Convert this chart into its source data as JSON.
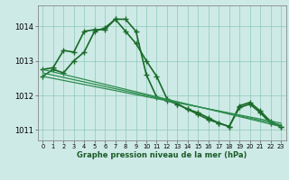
{
  "background_color": "#ceeae6",
  "grid_color": "#8cc8b8",
  "xlabel": "Graphe pression niveau de la mer (hPa)",
  "ylim": [
    1010.7,
    1014.6
  ],
  "xlim": [
    -0.5,
    23.5
  ],
  "yticks": [
    1011,
    1012,
    1013,
    1014
  ],
  "xticks": [
    0,
    1,
    2,
    3,
    4,
    5,
    6,
    7,
    8,
    9,
    10,
    11,
    12,
    13,
    14,
    15,
    16,
    17,
    18,
    19,
    20,
    21,
    22,
    23
  ],
  "series": [
    {
      "x": [
        0,
        1,
        2,
        3,
        4,
        5,
        6,
        7,
        8,
        9,
        10,
        11,
        12,
        13,
        14,
        15,
        16,
        17,
        18,
        19,
        20,
        21,
        22,
        23
      ],
      "y": [
        1012.55,
        1012.75,
        1012.65,
        1013.0,
        1013.25,
        1013.85,
        1013.95,
        1014.2,
        1014.2,
        1013.85,
        1012.6,
        1011.95,
        1011.85,
        1011.75,
        1011.6,
        1011.5,
        1011.35,
        1011.2,
        1011.1,
        1011.7,
        1011.8,
        1011.55,
        1011.25,
        1011.1
      ],
      "color": "#1a6b2a",
      "marker": "+",
      "linewidth": 1.2,
      "markersize": 4
    },
    {
      "x": [
        0,
        1,
        2,
        3,
        4,
        5,
        6,
        7,
        8,
        9,
        10,
        11,
        12,
        13,
        14,
        15,
        16,
        17,
        18,
        19,
        20,
        21,
        22,
        23
      ],
      "y": [
        1012.75,
        1012.8,
        1013.3,
        1013.25,
        1013.85,
        1013.9,
        1013.9,
        1014.2,
        1013.85,
        1013.5,
        1013.0,
        1012.55,
        1011.9,
        1011.75,
        1011.6,
        1011.45,
        1011.3,
        1011.2,
        1011.1,
        1011.65,
        1011.75,
        1011.5,
        1011.2,
        1011.1
      ],
      "color": "#1a6b2a",
      "marker": "+",
      "linewidth": 1.2,
      "markersize": 4
    },
    {
      "x": [
        0,
        23
      ],
      "y": [
        1012.75,
        1011.1
      ],
      "color": "#2d8c4e",
      "marker": null,
      "linewidth": 0.9
    },
    {
      "x": [
        0,
        23
      ],
      "y": [
        1012.65,
        1011.15
      ],
      "color": "#2d8c4e",
      "marker": null,
      "linewidth": 0.9
    },
    {
      "x": [
        0,
        23
      ],
      "y": [
        1012.55,
        1011.2
      ],
      "color": "#2d8c4e",
      "marker": null,
      "linewidth": 0.9
    }
  ],
  "xlabel_fontsize": 6.0,
  "xlabel_color": "#1a5c28",
  "ytick_fontsize": 6.0,
  "xtick_fontsize": 4.8
}
